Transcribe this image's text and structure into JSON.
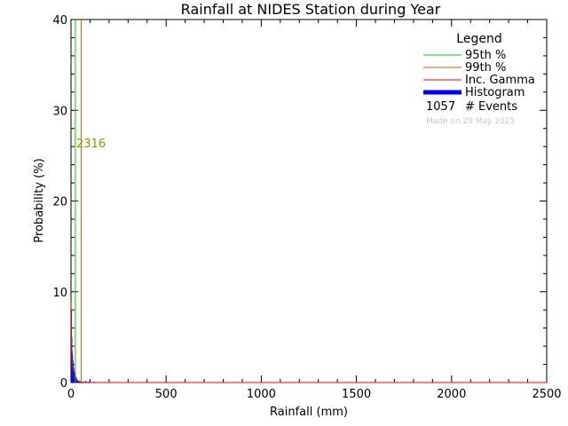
{
  "chart_data": {
    "type": "bar",
    "title": "Rainfall at NIDES Station during Year",
    "xlabel": "Rainfall (mm)",
    "ylabel": "Probability (%)",
    "xlim": [
      0,
      2500
    ],
    "ylim": [
      0,
      40
    ],
    "xticks": [
      0,
      500,
      1000,
      1500,
      2000,
      2500
    ],
    "yticks": [
      0,
      10,
      20,
      30,
      40
    ],
    "grid": false,
    "histogram": {
      "name": "Histogram",
      "color": "#0000ff",
      "bin_width": 2,
      "bins": [
        {
          "x": 0,
          "p": 8.0
        },
        {
          "x": 2,
          "p": 5.0
        },
        {
          "x": 4,
          "p": 3.5
        },
        {
          "x": 6,
          "p": 3.0
        },
        {
          "x": 8,
          "p": 2.5
        },
        {
          "x": 10,
          "p": 2.0
        },
        {
          "x": 12,
          "p": 1.6
        },
        {
          "x": 14,
          "p": 1.3
        },
        {
          "x": 16,
          "p": 1.1
        },
        {
          "x": 18,
          "p": 1.0
        },
        {
          "x": 20,
          "p": 0.8
        },
        {
          "x": 22,
          "p": 0.7
        },
        {
          "x": 24,
          "p": 0.6
        },
        {
          "x": 26,
          "p": 0.5
        },
        {
          "x": 28,
          "p": 0.4
        },
        {
          "x": 30,
          "p": 0.3
        },
        {
          "x": 34,
          "p": 0.25
        },
        {
          "x": 40,
          "p": 0.2
        },
        {
          "x": 50,
          "p": 0.15
        },
        {
          "x": 60,
          "p": 0.1
        },
        {
          "x": 75,
          "p": 0.2
        },
        {
          "x": 90,
          "p": 0.1
        },
        {
          "x": 120,
          "p": 0.1
        },
        {
          "x": 160,
          "p": 0.05
        },
        {
          "x": 250,
          "p": 0.05
        },
        {
          "x": 2020,
          "p": 0.05
        }
      ]
    },
    "gamma_curve": {
      "name": "Inc. Gamma",
      "color": "#ff0000",
      "x": [
        0.5,
        1,
        2,
        3,
        4,
        6,
        8,
        10,
        15,
        20,
        30,
        40,
        60,
        100,
        200,
        500,
        1000,
        2500
      ],
      "y": [
        9.0,
        7.5,
        5.2,
        4.0,
        3.2,
        2.3,
        1.7,
        1.3,
        0.8,
        0.5,
        0.25,
        0.12,
        0.04,
        0.01,
        0.0,
        0.0,
        0.0,
        0.0
      ]
    },
    "percentiles": [
      {
        "name": "95th %",
        "value": 23,
        "label": "23",
        "color": "#00cc00"
      },
      {
        "name": "99th %",
        "value": 54,
        "label": "54",
        "color": "#c06000"
      }
    ],
    "overlap_label": "2316",
    "legend": {
      "title": "Legend",
      "placement": "top-right",
      "entries": [
        {
          "label": "95th %",
          "color": "#00cc00"
        },
        {
          "label": "99th %",
          "color": "#c06000"
        },
        {
          "label": "Inc. Gamma",
          "color": "#ff0000"
        },
        {
          "label": "Histogram",
          "color": "#0000ff"
        }
      ],
      "events_count": "1057",
      "events_label": "# Events",
      "made_on": "Made on 29 May 2025"
    }
  }
}
